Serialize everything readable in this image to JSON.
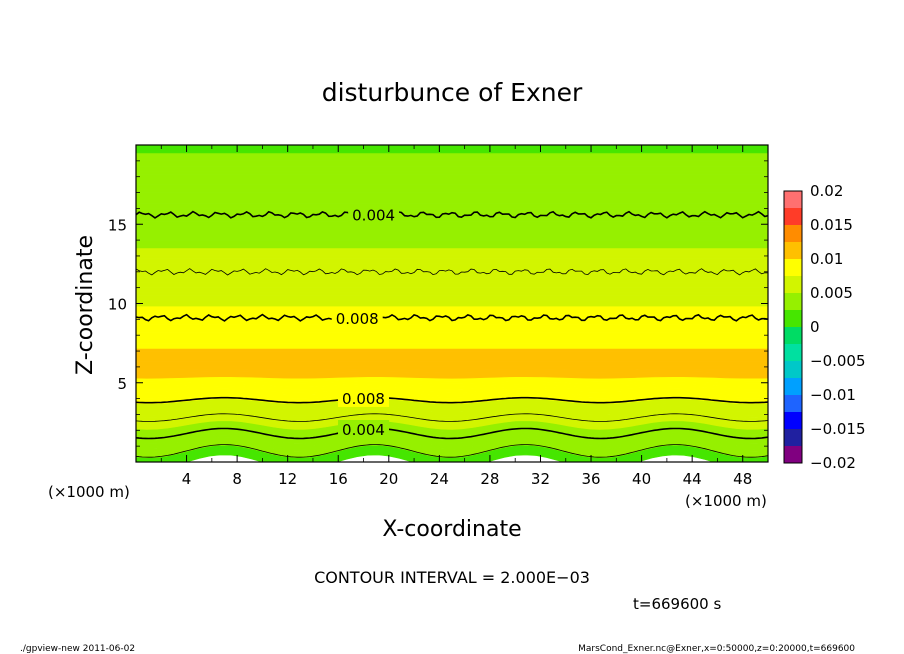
{
  "chart_data": {
    "type": "heatmap",
    "title": "disturbunce of Exner",
    "xlabel": "X-coordinate",
    "ylabel": "Z-coordinate",
    "x_unit": "(×1000 m)",
    "x_unit_right": "(×1000 m)",
    "z_unit": "(×1000 m)",
    "xlim": [
      0,
      50
    ],
    "ylim": [
      0,
      20
    ],
    "x_ticks": [
      4,
      8,
      12,
      16,
      20,
      24,
      28,
      32,
      36,
      40,
      44,
      48
    ],
    "x_tick_labels": [
      "4",
      "8",
      "12",
      "16",
      "20",
      "24",
      "28",
      "32",
      "36",
      "40",
      "44",
      "48"
    ],
    "y_ticks": [
      5,
      10,
      15
    ],
    "y_tick_labels": [
      "5",
      "10",
      "15"
    ],
    "colorbar": {
      "range": [
        -0.02,
        0.02
      ],
      "tick_values": [
        0.02,
        0.015,
        0.01,
        0.005,
        0,
        -0.005,
        -0.01,
        -0.015,
        -0.02
      ],
      "tick_labels": [
        "0.02",
        "0.015",
        "0.01",
        "0.005",
        "0",
        "−0.005",
        "−0.01",
        "−0.015",
        "−0.02"
      ]
    },
    "profile": {
      "z": [
        0,
        0.5,
        1,
        1.5,
        2,
        3,
        4,
        5,
        6,
        7,
        8,
        9,
        10,
        11,
        12,
        13,
        14,
        15,
        16,
        17,
        18,
        19,
        20
      ],
      "value": [
        0.001,
        0.002,
        0.003,
        0.0038,
        0.0045,
        0.006,
        0.0078,
        0.0098,
        0.0105,
        0.0102,
        0.0092,
        0.0082,
        0.0074,
        0.0065,
        0.006,
        0.0053,
        0.0046,
        0.0041,
        0.0036,
        0.0032,
        0.0028,
        0.0026,
        0.0024
      ]
    },
    "contour_interval": 0.002,
    "contours": [
      {
        "level": 0.004,
        "z": 15.6,
        "style": "thick",
        "label": "0.004",
        "label_x": 18.8
      },
      {
        "level": 0.006,
        "z": 12.0,
        "style": "thin"
      },
      {
        "level": 0.008,
        "z": 9.1,
        "style": "thick",
        "label": "0.008",
        "label_x": 17.5
      },
      {
        "level": 0.008,
        "z": 3.9,
        "style": "thick",
        "label": "0.008",
        "label_x": 18.0
      },
      {
        "level": 0.006,
        "z": 2.8,
        "style": "thin"
      },
      {
        "level": 0.004,
        "z": 1.8,
        "style": "thick",
        "label": "0.004",
        "label_x": 18.0
      },
      {
        "level": 0.002,
        "z": 0.7,
        "style": "thin"
      }
    ]
  },
  "annotations": {
    "contour_interval_text": "CONTOUR INTERVAL = 2.000E−03",
    "time_text": "t=669600 s",
    "footer_left": "./gpview-new  2011-06-02",
    "footer_right": "MarsCond_Exner.nc@Exner,x=0:50000,z=0:20000,t=669600"
  }
}
